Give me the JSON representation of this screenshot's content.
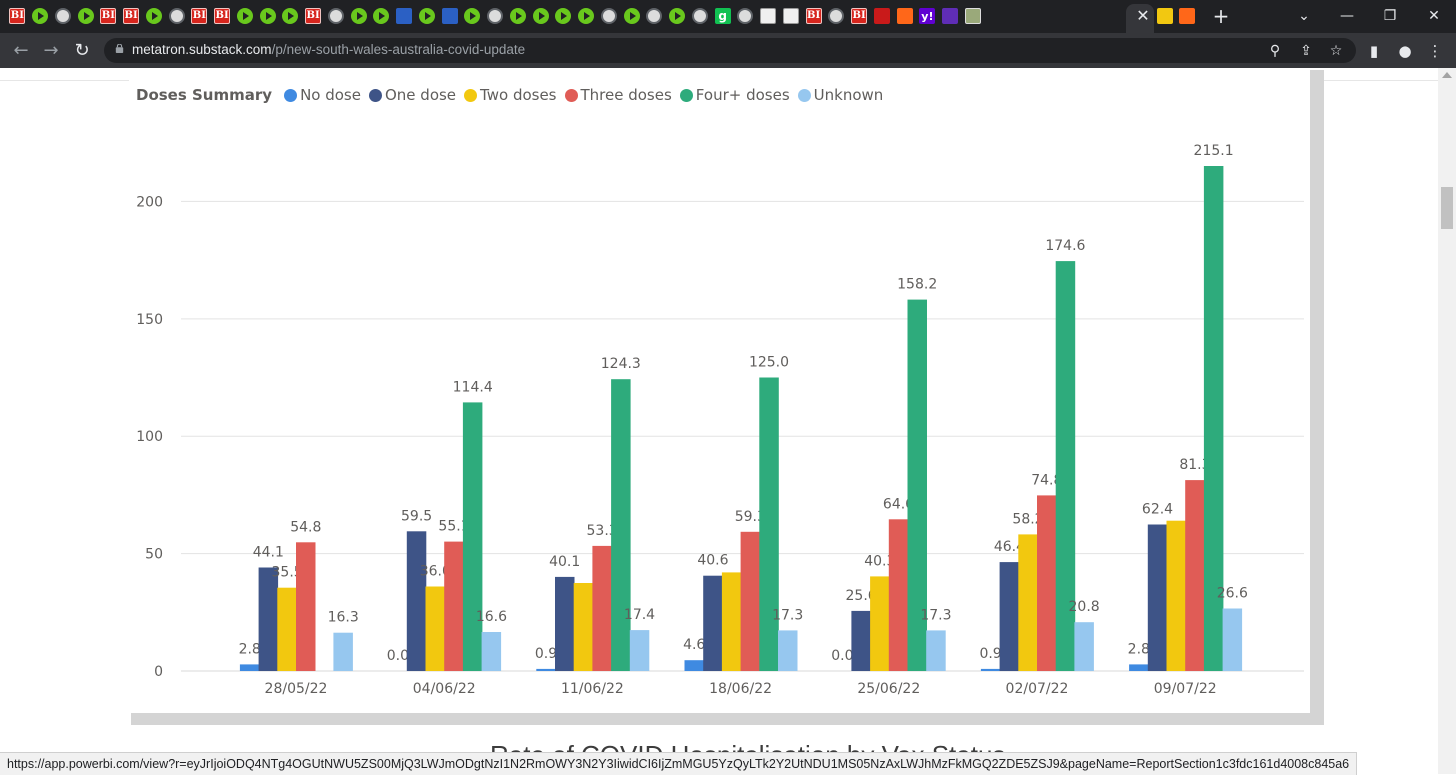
{
  "browser": {
    "tab_favicons": [
      "bi",
      "play",
      "globe",
      "play",
      "bi",
      "bi",
      "play",
      "globe",
      "bi",
      "bi",
      "play",
      "play",
      "play",
      "bi",
      "globe",
      "play",
      "play",
      "flag",
      "play",
      "flag",
      "play",
      "globe",
      "play",
      "play",
      "play",
      "play",
      "globe",
      "play",
      "globe",
      "play",
      "globe",
      "g",
      "globe",
      "dice",
      "dice",
      "bi",
      "globe",
      "bi",
      "drop",
      "sub",
      "yahoo",
      "bar",
      "pic"
    ],
    "bi_label": "BI",
    "g_label": "g",
    "yahoo_label": "y!",
    "active_tab_favicons": [
      "pbi",
      "sub"
    ],
    "close_glyph": "✕",
    "new_tab_glyph": "+",
    "window_controls": {
      "tab_search": "⌄",
      "minimize": "—",
      "restore": "❐",
      "close": "✕"
    },
    "nav": {
      "back": "←",
      "forward": "→",
      "reload": "↻"
    },
    "url_host": "metatron.substack.com",
    "url_path": "/p/new-south-wales-australia-covid-update",
    "toolbar_icons": {
      "zoom": "⚲",
      "share": "⇪",
      "bookmark": "☆",
      "sidepanel": "▮",
      "profile": "●",
      "menu": "⋮"
    }
  },
  "page": {
    "next_section_title": "Rate of COVID Hospitalisation by Vax Status",
    "status_url": "https://app.powerbi.com/view?r=eyJrIjoiODQ4NTg4OGUtNWU5ZS00MjQ3LWJmODgtNzI1N2RmOWY3N2Y3IiwidCI6IjZmMGU5YzQyLTk2Y2UtNDU1MS05NzAxLWJhMzFkMGQ2ZDE5ZSJ9&pageName=ReportSection1c3fdc161d4008c845a6"
  },
  "chart_data": {
    "type": "bar",
    "title": "Doses Summary",
    "categories": [
      "28/05/22",
      "04/06/22",
      "11/06/22",
      "18/06/22",
      "25/06/22",
      "02/07/22",
      "09/07/22"
    ],
    "series": [
      {
        "name": "No dose",
        "color": "#3f8ae1",
        "values": [
          2.8,
          0.0,
          0.9,
          4.6,
          0.0,
          0.9,
          2.8
        ]
      },
      {
        "name": "One dose",
        "color": "#3e5487",
        "values": [
          44.1,
          59.5,
          40.1,
          40.6,
          25.6,
          46.4,
          62.4
        ]
      },
      {
        "name": "Two doses",
        "color": "#f2c80f",
        "values": [
          35.5,
          36.0,
          37.5,
          42.0,
          40.3,
          58.2,
          64.0
        ]
      },
      {
        "name": "Three doses",
        "color": "#e05c56",
        "values": [
          54.8,
          55.1,
          53.3,
          59.3,
          64.6,
          74.8,
          81.3
        ]
      },
      {
        "name": "Four+ doses",
        "color": "#2eab7c",
        "values": [
          null,
          114.4,
          124.3,
          125.0,
          158.2,
          174.6,
          215.1
        ]
      },
      {
        "name": "Unknown",
        "color": "#96c7ef",
        "values": [
          16.3,
          16.6,
          17.4,
          17.3,
          17.3,
          20.8,
          26.6
        ]
      }
    ],
    "data_labels": [
      [
        "2.8",
        "44.1",
        "35.5",
        "54.8",
        "",
        "16.3"
      ],
      [
        "0.0",
        "59.5",
        "36.0",
        "55.1",
        "114.4",
        "16.6"
      ],
      [
        "0.9",
        "40.1",
        "",
        "53.3",
        "124.3",
        "17.4"
      ],
      [
        "4.6",
        "40.6",
        "",
        "59.3",
        "125.0",
        "17.3"
      ],
      [
        "0.0",
        "25.6",
        "40.3",
        "64.6",
        "158.2",
        "17.3"
      ],
      [
        "0.9",
        "46.4",
        "58.2",
        "74.8",
        "174.6",
        "20.8"
      ],
      [
        "2.8",
        "62.4",
        "",
        "81.3",
        "215.1",
        "26.6"
      ]
    ],
    "y_ticks": [
      0,
      50,
      100,
      150,
      200
    ],
    "ylim": [
      0,
      230
    ],
    "xlabel": "",
    "ylabel": "",
    "grid": true,
    "legend_position": "top-left"
  }
}
